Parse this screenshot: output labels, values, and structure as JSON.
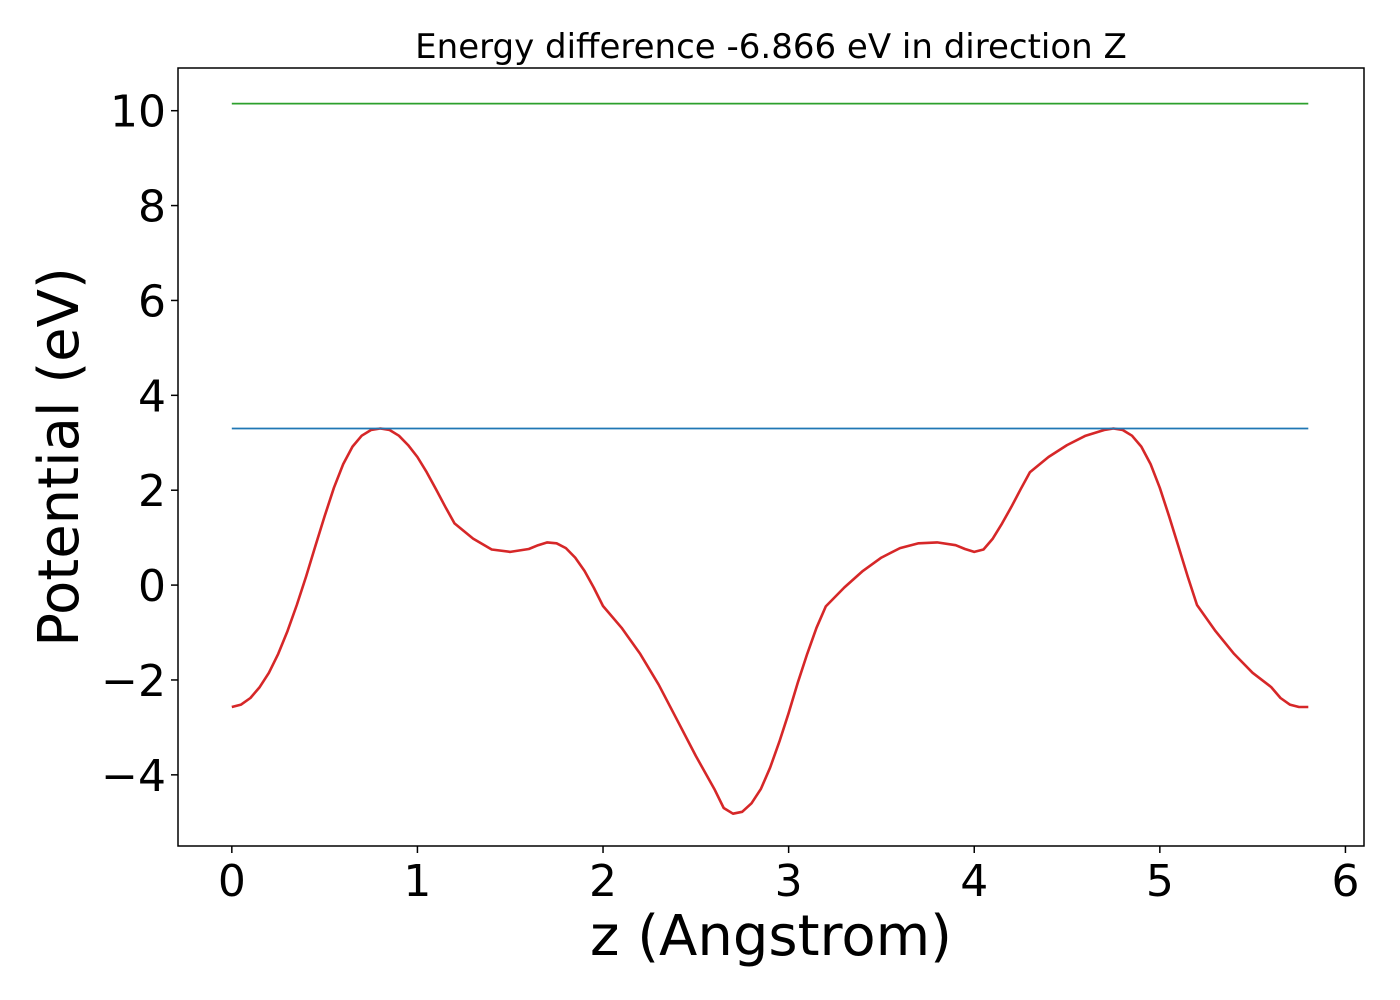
{
  "chart_data": {
    "type": "line",
    "title": "Energy difference -6.866 eV in direction Z",
    "xlabel": "z (Angstrom)",
    "ylabel": "Potential (eV)",
    "xlim": [
      -0.29,
      6.1
    ],
    "ylim": [
      -5.5,
      10.9
    ],
    "xticks": [
      0,
      1,
      2,
      3,
      4,
      5,
      6
    ],
    "xtick_labels": [
      "0",
      "1",
      "2",
      "3",
      "4",
      "5",
      "6"
    ],
    "yticks": [
      -4,
      -2,
      0,
      2,
      4,
      6,
      8,
      10
    ],
    "ytick_labels": [
      "−4",
      "−2",
      "0",
      "2",
      "4",
      "6",
      "8",
      "10"
    ],
    "grid": false,
    "legend": "none",
    "series": [
      {
        "color": "#d62728",
        "x": [
          0.0,
          0.05,
          0.1,
          0.15,
          0.2,
          0.25,
          0.3,
          0.35,
          0.4,
          0.45,
          0.5,
          0.55,
          0.6,
          0.65,
          0.7,
          0.75,
          0.8,
          0.85,
          0.9,
          0.95,
          1.0,
          1.05,
          1.1,
          1.15,
          1.2,
          1.3,
          1.4,
          1.5,
          1.6,
          1.65,
          1.7,
          1.75,
          1.8,
          1.85,
          1.9,
          1.95,
          2.0,
          2.1,
          2.2,
          2.3,
          2.4,
          2.5,
          2.6,
          2.65,
          2.7,
          2.75,
          2.8,
          2.85,
          2.9,
          2.95,
          3.0,
          3.05,
          3.1,
          3.15,
          3.2,
          3.3,
          3.4,
          3.5,
          3.6,
          3.7,
          3.8,
          3.9,
          3.95,
          4.0,
          4.05,
          4.1,
          4.15,
          4.2,
          4.25,
          4.3,
          4.4,
          4.5,
          4.6,
          4.7,
          4.75,
          4.8,
          4.85,
          4.9,
          4.95,
          5.0,
          5.05,
          5.1,
          5.15,
          5.2,
          5.3,
          5.4,
          5.5,
          5.6,
          5.65,
          5.7,
          5.75,
          5.8
        ],
        "y": [
          -2.57,
          -2.52,
          -2.38,
          -2.15,
          -1.85,
          -1.45,
          -0.97,
          -0.42,
          0.18,
          0.82,
          1.45,
          2.05,
          2.55,
          2.92,
          3.15,
          3.27,
          3.3,
          3.27,
          3.15,
          2.95,
          2.7,
          2.38,
          2.02,
          1.65,
          1.3,
          0.98,
          0.75,
          0.7,
          0.76,
          0.84,
          0.9,
          0.88,
          0.78,
          0.58,
          0.3,
          -0.05,
          -0.44,
          -0.9,
          -1.45,
          -2.1,
          -2.85,
          -3.6,
          -4.3,
          -4.7,
          -4.82,
          -4.78,
          -4.6,
          -4.3,
          -3.85,
          -3.3,
          -2.7,
          -2.05,
          -1.45,
          -0.9,
          -0.45,
          -0.05,
          0.3,
          0.58,
          0.78,
          0.88,
          0.9,
          0.84,
          0.76,
          0.7,
          0.75,
          0.98,
          1.3,
          1.65,
          2.02,
          2.38,
          2.7,
          2.95,
          3.15,
          3.27,
          3.3,
          3.27,
          3.15,
          2.92,
          2.55,
          2.05,
          1.45,
          0.82,
          0.18,
          -0.42,
          -0.97,
          -1.45,
          -1.85,
          -2.15,
          -2.38,
          -2.52,
          -2.57,
          -2.57
        ]
      },
      {
        "color": "#1f77b4",
        "x": [
          0.0,
          5.8
        ],
        "y": [
          3.3,
          3.3
        ]
      },
      {
        "color": "#2ca02c",
        "x": [
          0.0,
          5.8
        ],
        "y": [
          10.15,
          10.15
        ]
      }
    ]
  }
}
